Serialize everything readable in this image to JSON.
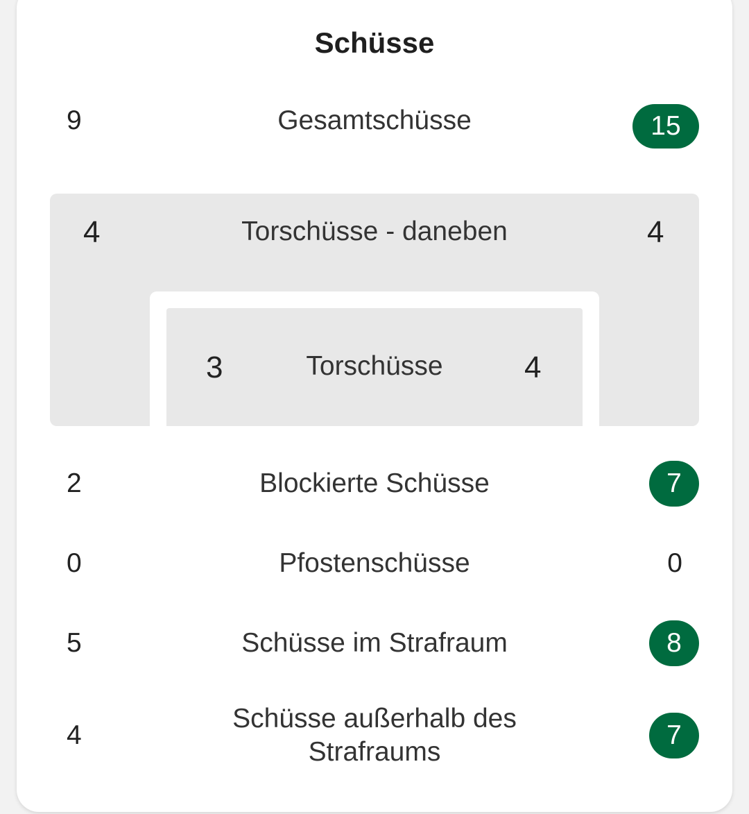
{
  "title": "Schüsse",
  "colors": {
    "badge_green": "#006b3f",
    "goal_area_gray": "#e8e8e8"
  },
  "total_shots": {
    "label": "Gesamtschüsse",
    "home": "9",
    "away": "15",
    "highlight": "away"
  },
  "goal_graphic": {
    "off_target": {
      "label": "Torschüsse - daneben",
      "home": "4",
      "away": "4"
    },
    "on_target": {
      "label": "Torschüsse",
      "home": "3",
      "away": "4"
    }
  },
  "stats": [
    {
      "label": "Blockierte Schüsse",
      "home": "2",
      "away": "7",
      "highlight": "away"
    },
    {
      "label": "Pfostenschüsse",
      "home": "0",
      "away": "0",
      "highlight": "none"
    },
    {
      "label": "Schüsse im Strafraum",
      "home": "5",
      "away": "8",
      "highlight": "away"
    },
    {
      "label": "Schüsse außerhalb des Strafraums",
      "home": "4",
      "away": "7",
      "highlight": "away"
    }
  ]
}
